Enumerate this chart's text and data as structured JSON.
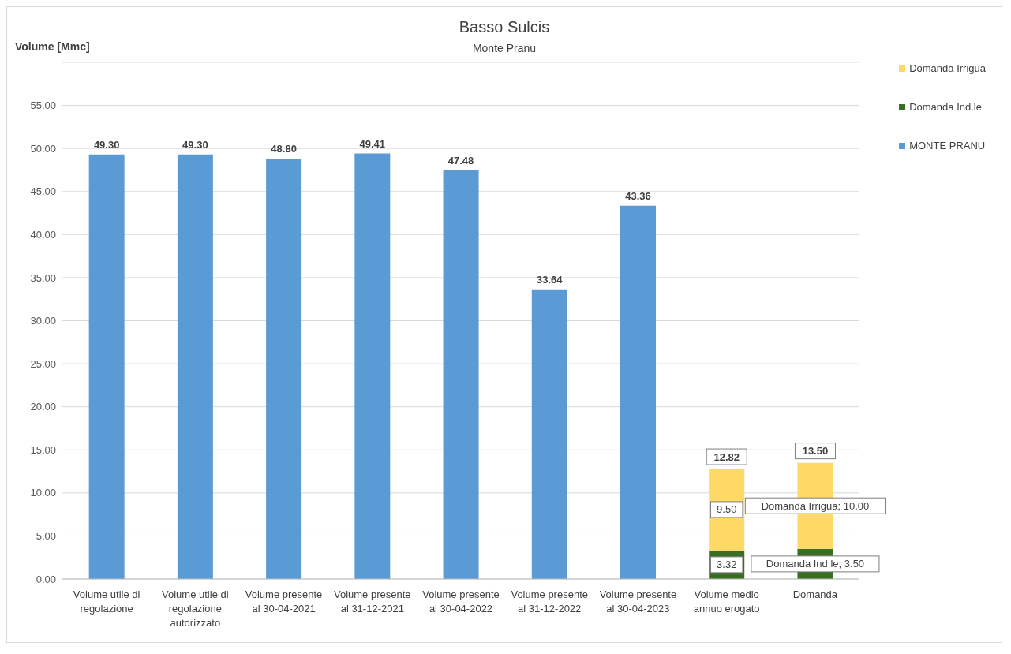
{
  "chart_data": {
    "type": "bar",
    "title": "Basso Sulcis",
    "subtitle": "Monte Pranu",
    "ylabel": "Volume [Mmc]",
    "categories": [
      "Volume utile di regolazione",
      "Volume utile di regolazione autorizzato",
      "Volume presente al 30-04-2021",
      "Volume presente al 31-12-2021",
      "Volume presente al 30-04-2022",
      "Volume presente al 31-12-2022",
      "Volume presente al 30-04-2023",
      "Volume medio annuo erogato",
      "Domanda"
    ],
    "stacked": true,
    "series": [
      {
        "name": "MONTE PRANU",
        "color": "#5b9bd5",
        "values": [
          49.3,
          49.3,
          48.8,
          49.41,
          47.48,
          33.64,
          43.36,
          null,
          null
        ],
        "value_labels": [
          "49.30",
          "49.30",
          "48.80",
          "49.41",
          "47.48",
          "33.64",
          "43.36",
          null,
          null
        ]
      },
      {
        "name": "Domanda Ind.le",
        "color": "#3b6e22",
        "values": [
          null,
          null,
          null,
          null,
          null,
          null,
          null,
          3.32,
          3.5
        ],
        "value_labels": [
          null,
          null,
          null,
          null,
          null,
          null,
          null,
          "3.32",
          "Domanda Ind.le; 3.50"
        ]
      },
      {
        "name": "Domanda Irrigua",
        "color": "#ffd966",
        "values": [
          null,
          null,
          null,
          null,
          null,
          null,
          null,
          9.5,
          10.0
        ],
        "value_labels": [
          null,
          null,
          null,
          null,
          null,
          null,
          null,
          "9.50",
          "Domanda Irrigua; 10.00"
        ]
      }
    ],
    "totals": [
      null,
      null,
      null,
      null,
      null,
      null,
      null,
      "12.82",
      "13.50"
    ],
    "ylim": [
      0,
      60
    ],
    "yticks": [
      {
        "value": 0,
        "label": "0.00"
      },
      {
        "value": 5,
        "label": "5.00"
      },
      {
        "value": 10,
        "label": "10.00"
      },
      {
        "value": 15,
        "label": "15.00"
      },
      {
        "value": 20,
        "label": "20.00"
      },
      {
        "value": 25,
        "label": "25.00"
      },
      {
        "value": 30,
        "label": "30.00"
      },
      {
        "value": 35,
        "label": "35.00"
      },
      {
        "value": 40,
        "label": "40.00"
      },
      {
        "value": 45,
        "label": "45.00"
      },
      {
        "value": 50,
        "label": "50.00"
      },
      {
        "value": 55,
        "label": "55.00"
      },
      {
        "value": 60,
        "label": null
      }
    ],
    "grid": "y",
    "legend": "top right"
  }
}
